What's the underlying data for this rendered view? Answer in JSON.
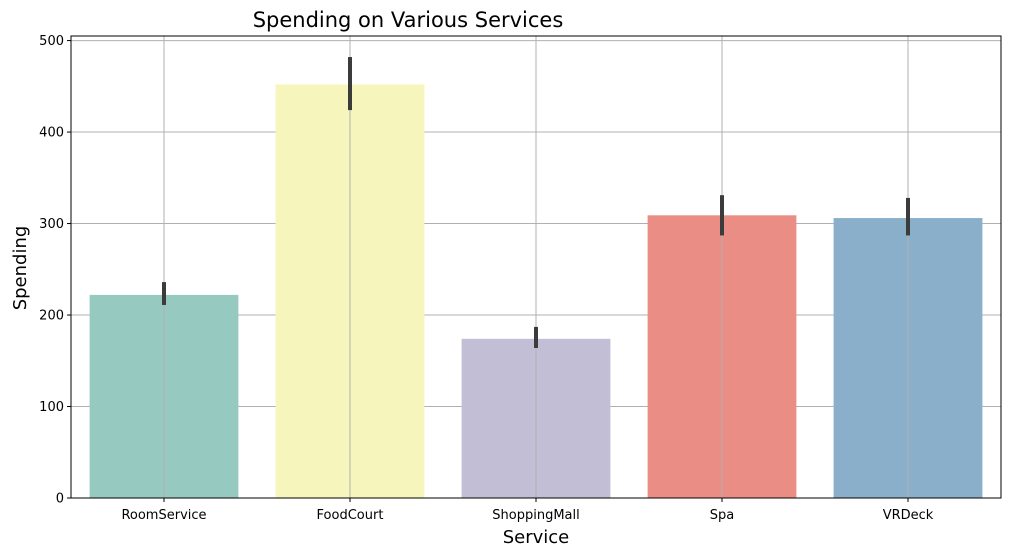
{
  "chart_data": {
    "type": "bar",
    "title": "Spending on Various Services",
    "xlabel": "Service",
    "ylabel": "Spending",
    "categories": [
      "RoomService",
      "FoodCourt",
      "ShoppingMall",
      "Spa",
      "VRDeck"
    ],
    "values": [
      222,
      452,
      174,
      309,
      306
    ],
    "error_bars": [
      {
        "low": 211,
        "high": 236
      },
      {
        "low": 424,
        "high": 482
      },
      {
        "low": 164,
        "high": 187
      },
      {
        "low": 287,
        "high": 331
      },
      {
        "low": 287,
        "high": 328
      }
    ],
    "colors": [
      "#96cac1",
      "#f6f6bc",
      "#c1bed6",
      "#ea8d84",
      "#89afca"
    ],
    "error_bar_color": "#3b3b3b",
    "grid_color": "#b0b0b0",
    "yticks": [
      0,
      100,
      200,
      300,
      400,
      500
    ],
    "ytick_labels": [
      "0",
      "100",
      "200",
      "300",
      "400",
      "500"
    ],
    "ylim": [
      0,
      505
    ],
    "grid": true
  }
}
